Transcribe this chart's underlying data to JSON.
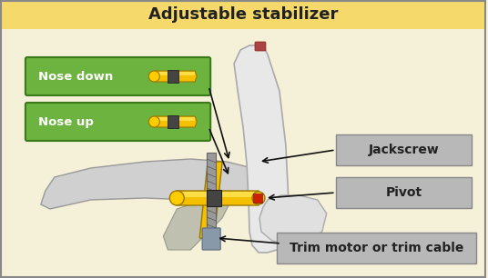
{
  "title": "Adjustable stabilizer",
  "title_bg": "#f5d96b",
  "bg_color": "#f5f0d8",
  "border_color": "#888888",
  "label_nose_down": "Nose down",
  "label_nose_up": "Nose up",
  "label_jackscrew": "Jackscrew",
  "label_pivot": "Pivot",
  "label_trim": "Trim motor or trim cable",
  "green_box_color": "#5a9e3a",
  "green_box_fill": "#6db33f",
  "gray_box_color": "#aaaaaa",
  "gray_box_fill": "#b8b8b8",
  "yellow_color": "#f5c000",
  "dark_yellow": "#c8980a",
  "screw_color": "#888888",
  "motor_color": "#8899aa",
  "red_dot": "#cc2200",
  "arrow_color": "#111111",
  "tail_outline": "#cccccc",
  "tail_fill": "#e8e8e8"
}
